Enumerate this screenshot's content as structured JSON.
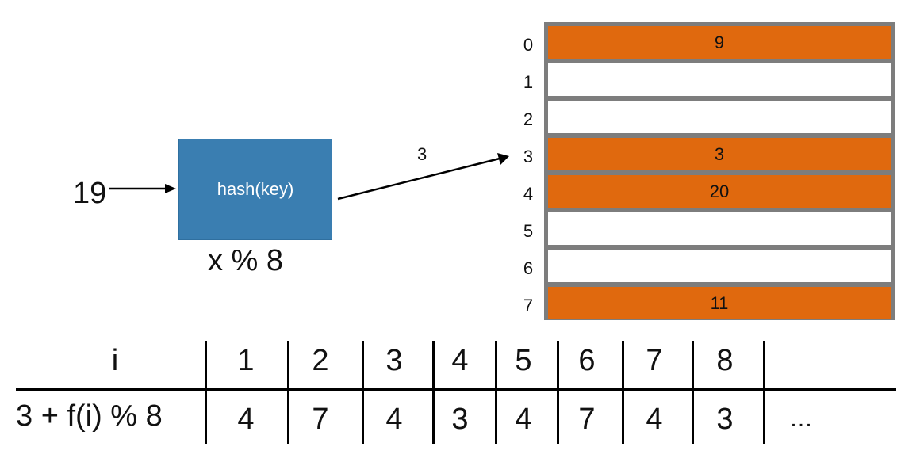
{
  "input": {
    "key": "19"
  },
  "hash": {
    "label": "hash(key)",
    "formula": "x % 8",
    "output": "3"
  },
  "table": {
    "indices": [
      "0",
      "1",
      "2",
      "3",
      "4",
      "5",
      "6",
      "7"
    ],
    "slots": [
      {
        "value": "9",
        "filled": true
      },
      {
        "value": "",
        "filled": false
      },
      {
        "value": "",
        "filled": false
      },
      {
        "value": "3",
        "filled": true
      },
      {
        "value": "20",
        "filled": true
      },
      {
        "value": "",
        "filled": false
      },
      {
        "value": "",
        "filled": false
      },
      {
        "value": "11",
        "filled": true
      }
    ],
    "filled_color": "#e0690e",
    "empty_color": "#ffffff",
    "border_color": "#7d7d7d"
  },
  "hash_box_color": "#3a7eb1",
  "probe": {
    "row1_header": "i",
    "row1": [
      "1",
      "2",
      "3",
      "4",
      "5",
      "6",
      "7",
      "8",
      ""
    ],
    "row2_header": "3 + f(i) % 8",
    "row2": [
      "4",
      "7",
      "4",
      "3",
      "4",
      "7",
      "4",
      "3",
      "…"
    ]
  }
}
